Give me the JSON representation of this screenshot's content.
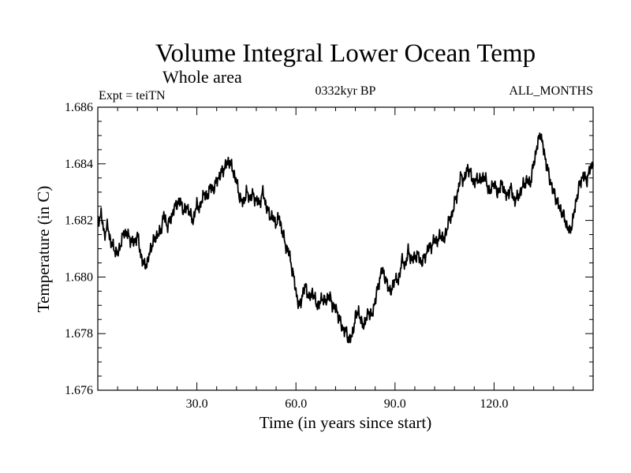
{
  "chart_data": {
    "type": "line",
    "title": "Volume Integral Lower Ocean Temp",
    "subtitle": "Whole area",
    "annotations": {
      "left": "Expt = teiTN",
      "center": "0332kyr BP",
      "right": "ALL_MONTHS"
    },
    "xlabel": "Time (in years since start)",
    "ylabel": "Temperature (in C)",
    "xlim": [
      0,
      150
    ],
    "ylim": [
      1.676,
      1.686
    ],
    "x_ticks": [
      30,
      60,
      90,
      120
    ],
    "x_tick_labels": [
      "30.0",
      "60.0",
      "90.0",
      "120.0"
    ],
    "y_ticks": [
      1.676,
      1.678,
      1.68,
      1.682,
      1.684,
      1.686
    ],
    "y_tick_labels": [
      "1.676",
      "1.678",
      "1.680",
      "1.682",
      "1.684",
      "1.686"
    ],
    "grid": false,
    "line_color": "#000000",
    "series": [
      {
        "name": "Volume Integral Lower Ocean Temp",
        "x": [
          0,
          1,
          2,
          3,
          4,
          5,
          6,
          7,
          8,
          9,
          10,
          11,
          12,
          13,
          14,
          15,
          16,
          17,
          18,
          19,
          20,
          21,
          22,
          23,
          24,
          25,
          26,
          27,
          28,
          29,
          30,
          31,
          32,
          33,
          34,
          35,
          36,
          37,
          38,
          39,
          40,
          41,
          42,
          43,
          44,
          45,
          46,
          47,
          48,
          49,
          50,
          51,
          52,
          53,
          54,
          55,
          56,
          57,
          58,
          59,
          60,
          61,
          62,
          63,
          64,
          65,
          66,
          67,
          68,
          69,
          70,
          71,
          72,
          73,
          74,
          75,
          76,
          77,
          78,
          79,
          80,
          81,
          82,
          83,
          84,
          85,
          86,
          87,
          88,
          89,
          90,
          91,
          92,
          93,
          94,
          95,
          96,
          97,
          98,
          99,
          100,
          101,
          102,
          103,
          104,
          105,
          106,
          107,
          108,
          109,
          110,
          111,
          112,
          113,
          114,
          115,
          116,
          117,
          118,
          119,
          120,
          121,
          122,
          123,
          124,
          125,
          126,
          127,
          128,
          129,
          130,
          131,
          132,
          133,
          134,
          135,
          136,
          137,
          138,
          139,
          140,
          141,
          142,
          143,
          144,
          145,
          146,
          147,
          148,
          149,
          150
        ],
        "values": [
          1.682,
          1.6822,
          1.6815,
          1.6818,
          1.6812,
          1.681,
          1.6808,
          1.6812,
          1.6816,
          1.6815,
          1.6813,
          1.6812,
          1.6815,
          1.6808,
          1.6804,
          1.6805,
          1.681,
          1.6813,
          1.6815,
          1.6816,
          1.6822,
          1.6818,
          1.682,
          1.6824,
          1.6826,
          1.6827,
          1.6823,
          1.6825,
          1.6822,
          1.682,
          1.6826,
          1.6824,
          1.683,
          1.6828,
          1.6832,
          1.6831,
          1.6834,
          1.6836,
          1.6838,
          1.684,
          1.6841,
          1.6837,
          1.6834,
          1.6828,
          1.6826,
          1.683,
          1.6828,
          1.6829,
          1.6827,
          1.6826,
          1.683,
          1.6825,
          1.6822,
          1.6821,
          1.6819,
          1.6821,
          1.6815,
          1.6811,
          1.6808,
          1.6802,
          1.6795,
          1.6789,
          1.6794,
          1.6797,
          1.6792,
          1.6795,
          1.6791,
          1.679,
          1.6793,
          1.6791,
          1.6794,
          1.679,
          1.6789,
          1.6786,
          1.6782,
          1.6781,
          1.6778,
          1.6779,
          1.6786,
          1.6788,
          1.6783,
          1.6784,
          1.6788,
          1.6786,
          1.6792,
          1.6797,
          1.6803,
          1.68,
          1.6796,
          1.6795,
          1.68,
          1.6798,
          1.6806,
          1.6804,
          1.6809,
          1.6806,
          1.6807,
          1.6808,
          1.6805,
          1.6807,
          1.681,
          1.6811,
          1.6813,
          1.6813,
          1.6815,
          1.6813,
          1.6819,
          1.6821,
          1.6826,
          1.683,
          1.6836,
          1.6834,
          1.6839,
          1.6836,
          1.6833,
          1.6835,
          1.6834,
          1.6836,
          1.6832,
          1.683,
          1.6834,
          1.6829,
          1.6833,
          1.6831,
          1.6828,
          1.6832,
          1.6827,
          1.6828,
          1.683,
          1.6833,
          1.6834,
          1.6833,
          1.684,
          1.6846,
          1.6851,
          1.6845,
          1.6839,
          1.6834,
          1.683,
          1.6827,
          1.6824,
          1.6822,
          1.6818,
          1.6816,
          1.6821,
          1.6828,
          1.6833,
          1.6836,
          1.6834,
          1.6838,
          1.684
        ]
      }
    ]
  }
}
